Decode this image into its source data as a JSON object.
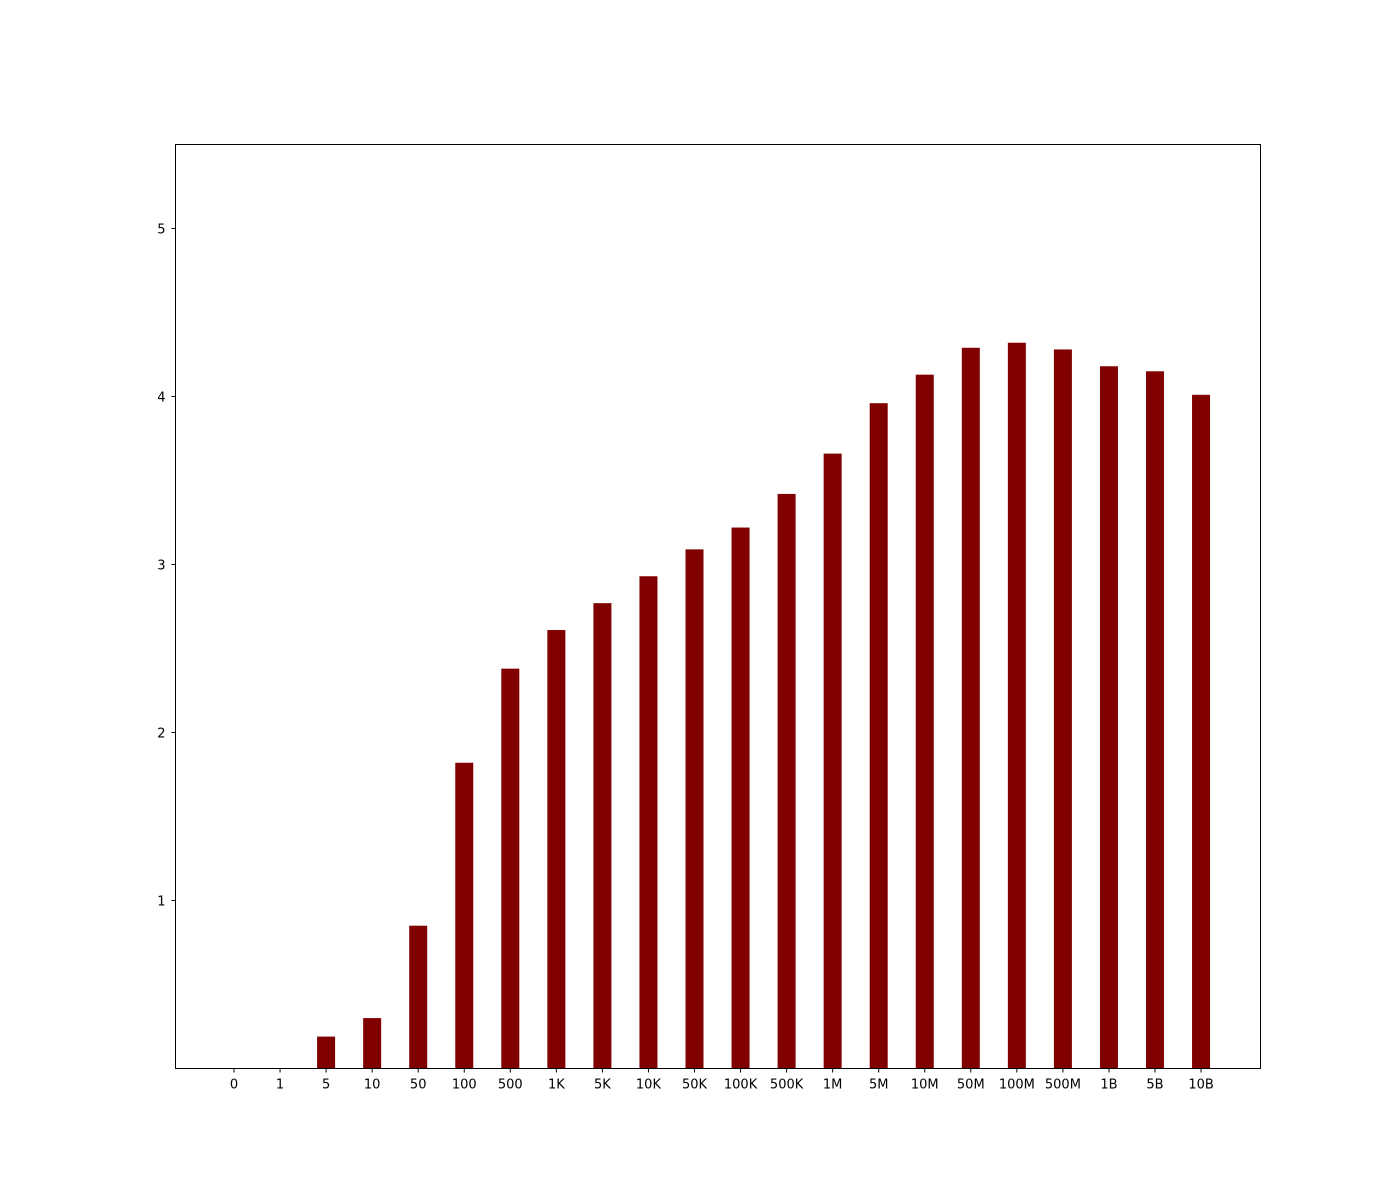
{
  "chart_data": {
    "type": "bar",
    "title": "",
    "xlabel": "",
    "ylabel": "",
    "categories": [
      "0",
      "1",
      "5",
      "10",
      "50",
      "100",
      "500",
      "1K",
      "5K",
      "10K",
      "50K",
      "100K",
      "500K",
      "1M",
      "5M",
      "10M",
      "50M",
      "100M",
      "500M",
      "1B",
      "5B",
      "10B"
    ],
    "values": [
      0.0,
      0.0,
      0.19,
      0.3,
      0.85,
      1.82,
      2.38,
      2.61,
      2.77,
      2.93,
      3.09,
      3.22,
      3.42,
      3.66,
      3.96,
      4.13,
      4.29,
      4.32,
      4.28,
      4.18,
      4.15,
      4.01
    ],
    "ylim": [
      0,
      5.5
    ],
    "yticks": [
      1,
      2,
      3,
      4,
      5
    ],
    "grid": false,
    "legend": "none",
    "bar_color": "#800000",
    "axis_color": "#000000"
  }
}
